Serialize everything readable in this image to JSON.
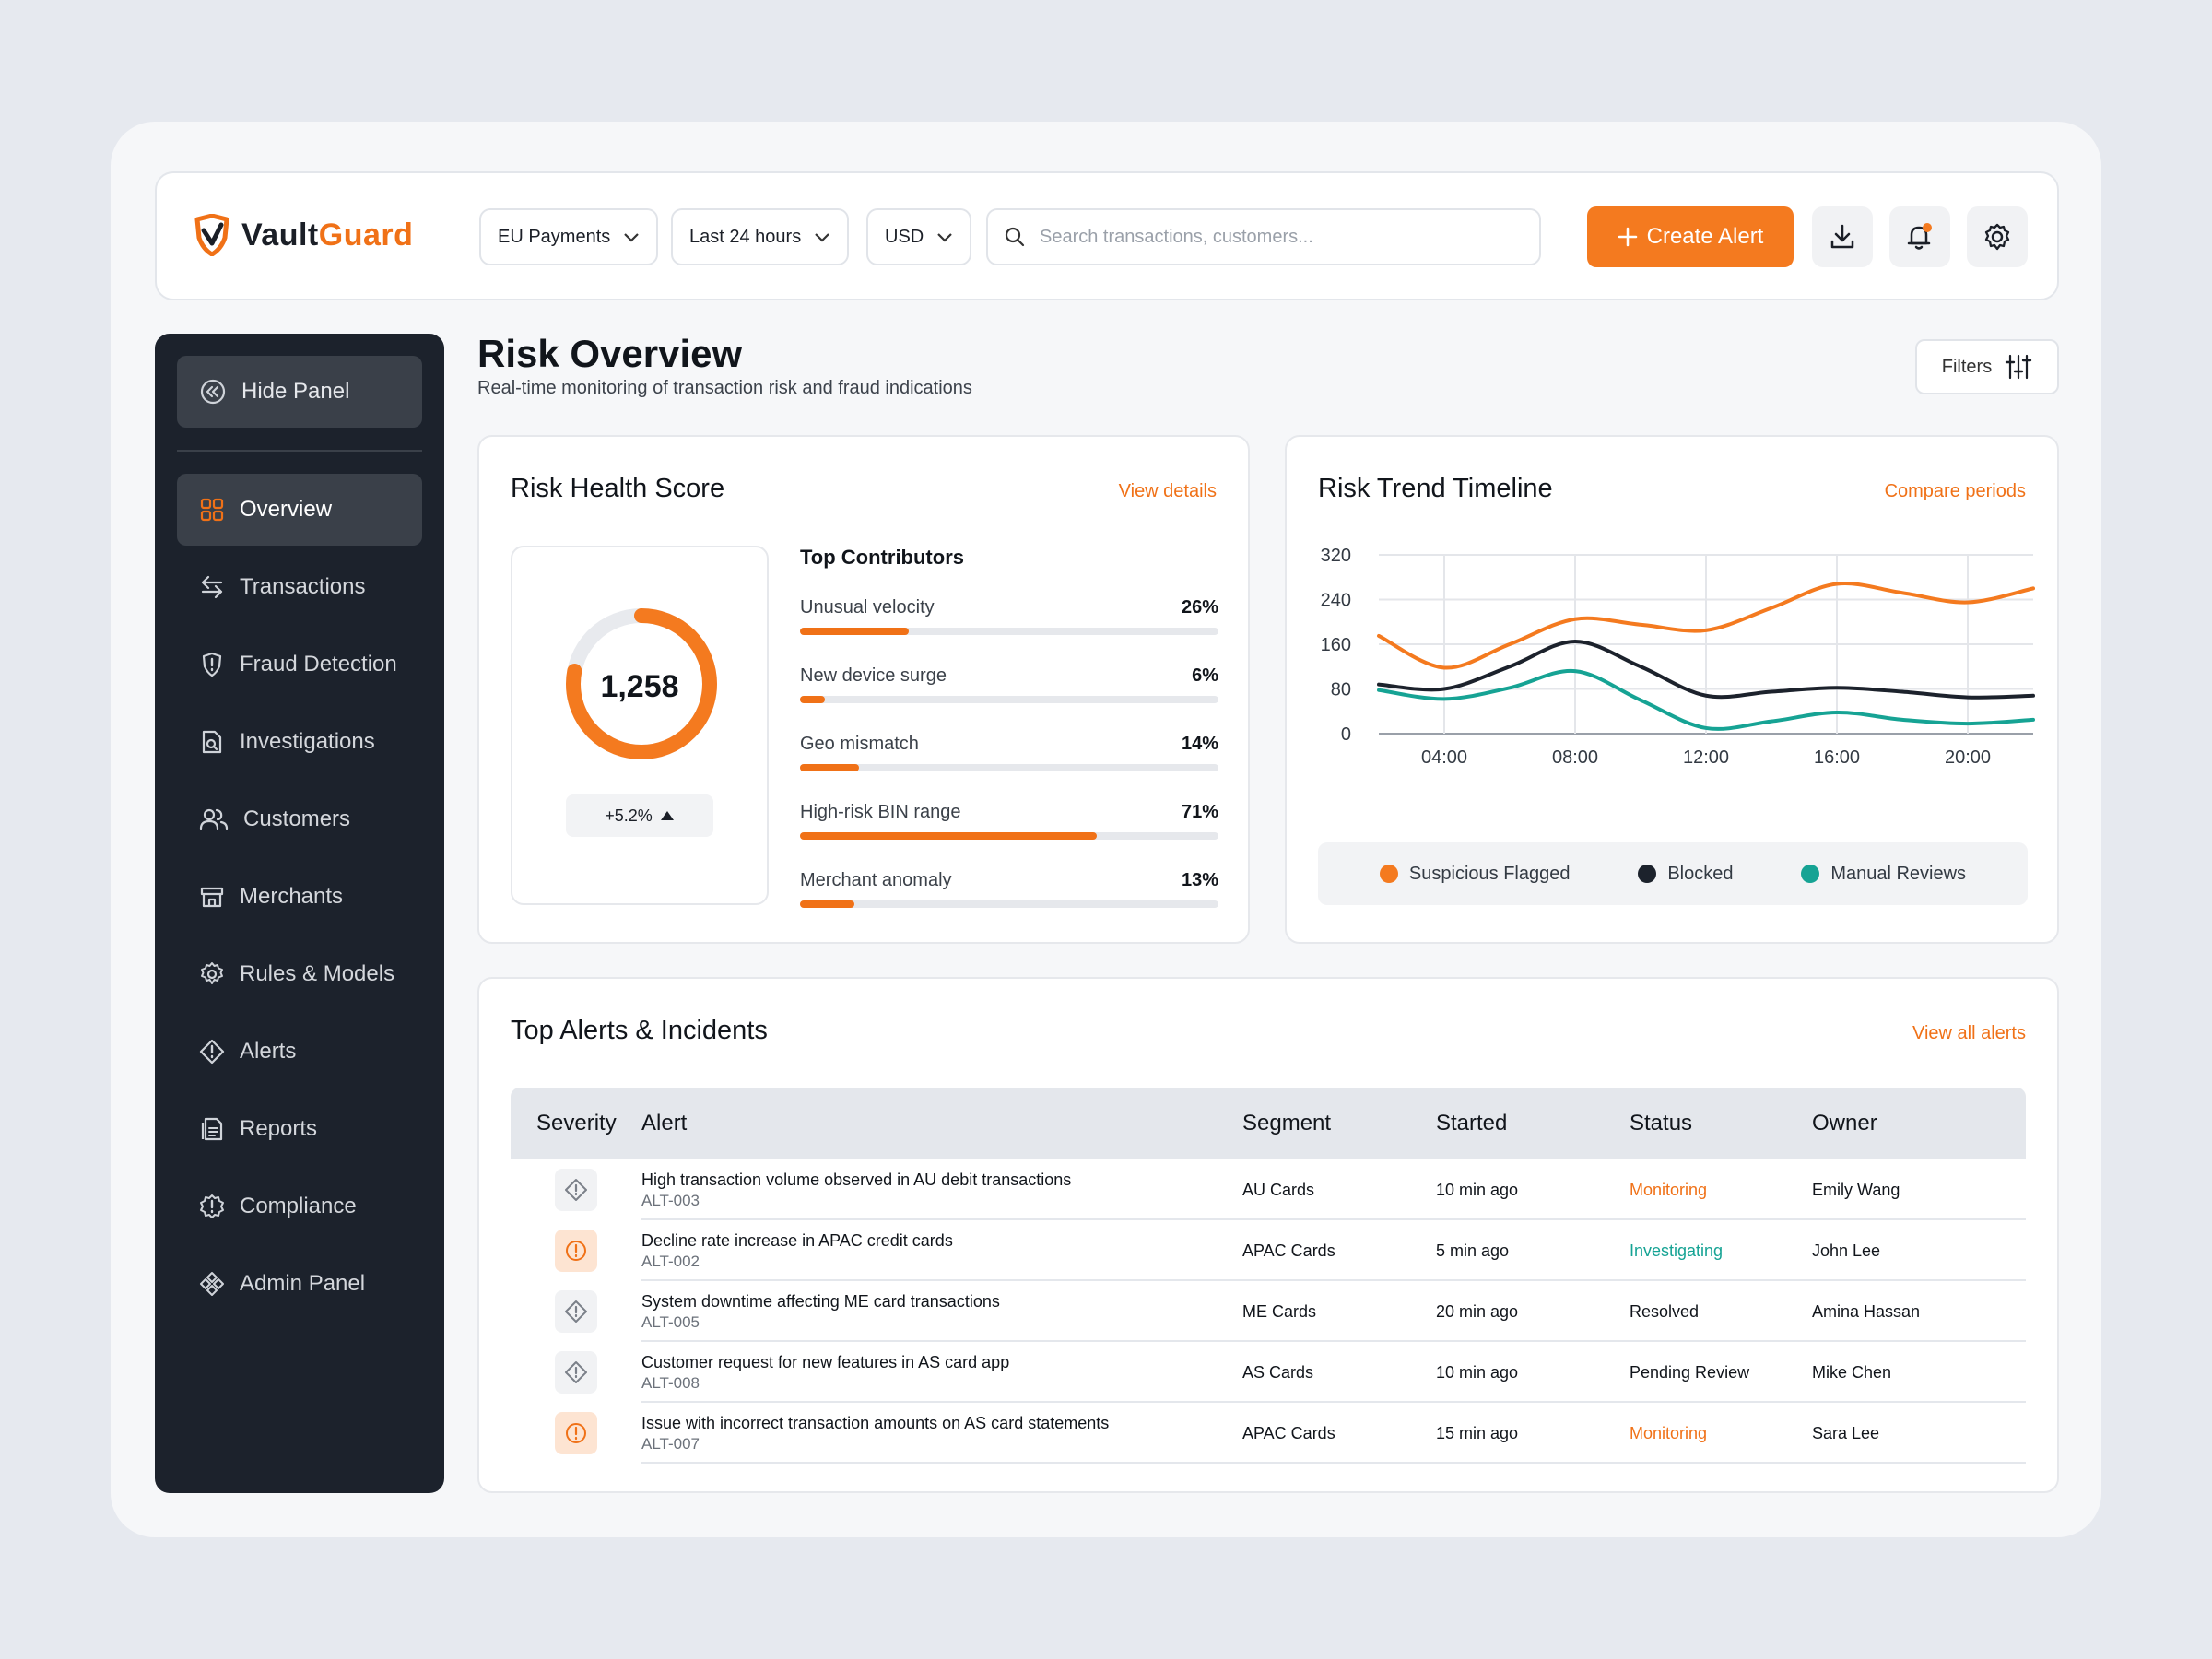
{
  "header": {
    "logo_prefix": "Vault",
    "logo_accent": "Guard",
    "segment_dd": "EU Payments",
    "range_dd": "Last 24 hours",
    "currency_dd": "USD",
    "search_placeholder": "Search transactions, customers...",
    "create_label": "Create Alert"
  },
  "sidebar": {
    "hide_label": "Hide Panel",
    "items": [
      {
        "label": "Overview"
      },
      {
        "label": "Transactions"
      },
      {
        "label": "Fraud Detection"
      },
      {
        "label": "Investigations"
      },
      {
        "label": "Customers"
      },
      {
        "label": "Merchants"
      },
      {
        "label": "Rules & Models"
      },
      {
        "label": "Alerts"
      },
      {
        "label": "Reports"
      },
      {
        "label": "Compliance"
      },
      {
        "label": "Admin Panel"
      }
    ]
  },
  "page": {
    "title": "Risk Overview",
    "subtitle": "Real-time monitoring of transaction risk and fraud indications",
    "filters_label": "Filters"
  },
  "health": {
    "title": "Risk Health Score",
    "link": "View details",
    "score": "1,258",
    "score_fraction": 0.78,
    "delta": "+5.2%",
    "contrib_title": "Top Contributors",
    "contributors": [
      {
        "label": "Unusual velocity",
        "pct": "26%",
        "value": 26
      },
      {
        "label": "New device surge",
        "pct": "6%",
        "value": 6
      },
      {
        "label": "Geo mismatch",
        "pct": "14%",
        "value": 14
      },
      {
        "label": "High-risk BIN range",
        "pct": "71%",
        "value": 71
      },
      {
        "label": "Merchant anomaly",
        "pct": "13%",
        "value": 13
      }
    ]
  },
  "trend": {
    "title": "Risk Trend Timeline",
    "link": "Compare periods"
  },
  "chart_data": {
    "type": "line",
    "x": [
      "02:00",
      "04:00",
      "06:00",
      "08:00",
      "10:00",
      "12:00",
      "14:00",
      "16:00",
      "18:00",
      "20:00",
      "22:00"
    ],
    "x_tick_labels": [
      "04:00",
      "08:00",
      "12:00",
      "16:00",
      "20:00"
    ],
    "ylim": [
      0,
      320
    ],
    "y_ticks": [
      "0",
      "80",
      "160",
      "240",
      "320"
    ],
    "grid": true,
    "legend": "bottom",
    "series": [
      {
        "name": "Suspicious Flagged",
        "color": "#f47a1f",
        "values": [
          175,
          118,
          160,
          205,
          195,
          185,
          225,
          268,
          252,
          235,
          260
        ]
      },
      {
        "name": "Blocked",
        "color": "#1c222c",
        "values": [
          88,
          80,
          120,
          165,
          120,
          68,
          75,
          82,
          75,
          65,
          68
        ]
      },
      {
        "name": "Manual Reviews",
        "color": "#16a394",
        "values": [
          78,
          62,
          82,
          112,
          60,
          10,
          22,
          38,
          25,
          18,
          25
        ]
      }
    ]
  },
  "alerts": {
    "title": "Top Alerts & Incidents",
    "link": "View all alerts",
    "columns": [
      "Severity",
      "Alert",
      "Segment",
      "Started",
      "Status",
      "Owner"
    ],
    "rows": [
      {
        "severity": "low",
        "title": "High transaction volume observed in AU debit transactions",
        "id": "ALT-003",
        "segment": "AU Cards",
        "started": "10 min ago",
        "status": "Monitoring",
        "status_color": "orange",
        "owner": "Emily Wang"
      },
      {
        "severity": "high",
        "title": "Decline rate increase in APAC credit cards",
        "id": "ALT-002",
        "segment": "APAC Cards",
        "started": "5 min ago",
        "status": "Investigating",
        "status_color": "teal",
        "owner": "John Lee"
      },
      {
        "severity": "low",
        "title": "System downtime affecting ME card transactions",
        "id": "ALT-005",
        "segment": "ME Cards",
        "started": "20 min ago",
        "status": "Resolved",
        "status_color": "default",
        "owner": "Amina Hassan"
      },
      {
        "severity": "low",
        "title": "Customer request for new features in AS card app",
        "id": "ALT-008",
        "segment": "AS Cards",
        "started": "10 min ago",
        "status": "Pending Review",
        "status_color": "default",
        "owner": "Mike Chen"
      },
      {
        "severity": "high",
        "title": "Issue with incorrect transaction amounts on AS card statements",
        "id": "ALT-007",
        "segment": "APAC Cards",
        "started": "15 min ago",
        "status": "Monitoring",
        "status_color": "orange",
        "owner": "Sara Lee"
      }
    ]
  }
}
